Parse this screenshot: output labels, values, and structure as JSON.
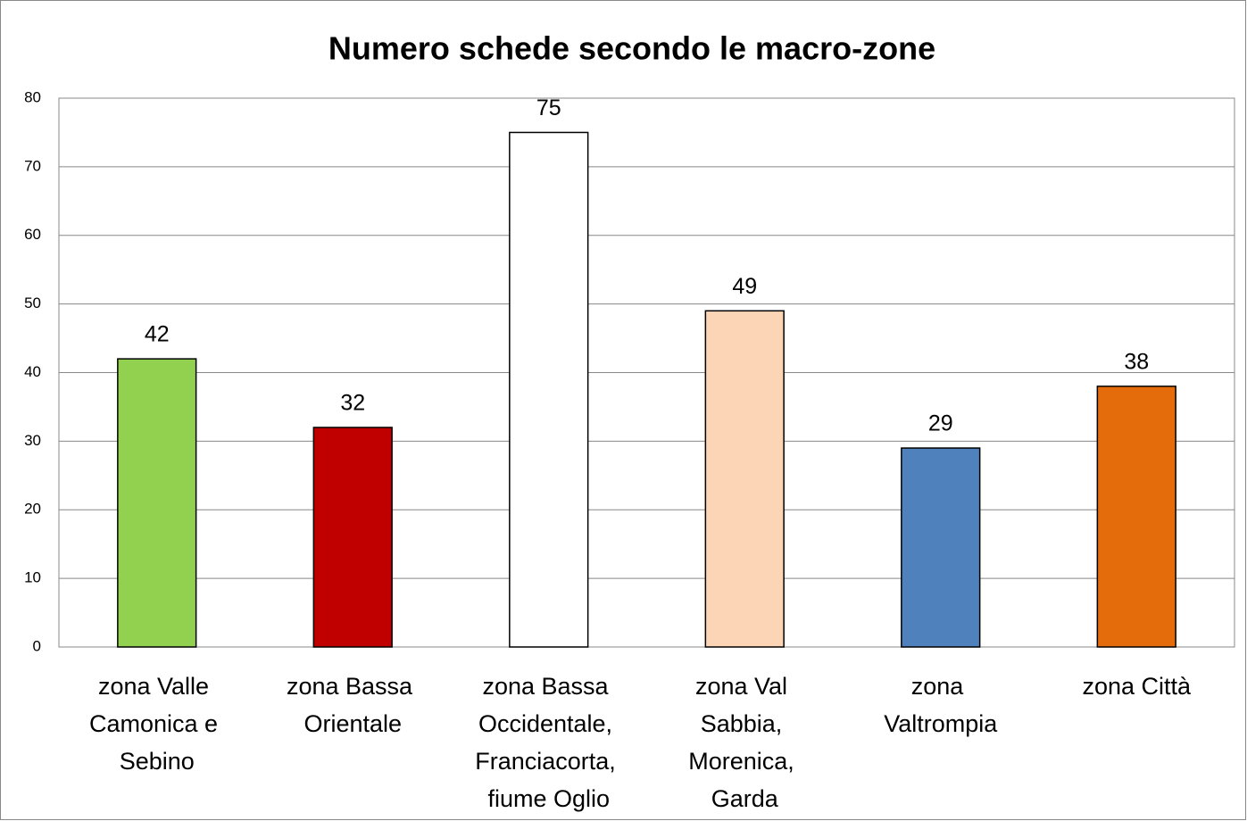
{
  "chart_data": {
    "type": "bar",
    "title": "Numero schede secondo le macro-zone",
    "categories": [
      "zona Valle Camonica e Sebino",
      "zona Bassa Orientale",
      "zona Bassa Occidentale, Franciacorta, fiume Oglio",
      "zona Val Sabbia, Morenica, Garda",
      "zona Valtrompia",
      "zona Città"
    ],
    "values": [
      42,
      32,
      75,
      49,
      29,
      38
    ],
    "colors": [
      "#92d050",
      "#c00000",
      "#ffffff",
      "#fbd5b5",
      "#4f81bd",
      "#e46c0a"
    ],
    "ylim": [
      0,
      80
    ],
    "yticks": [
      0,
      10,
      20,
      30,
      40,
      50,
      60,
      70,
      80
    ],
    "grid": true,
    "value_labels_shown": true
  }
}
